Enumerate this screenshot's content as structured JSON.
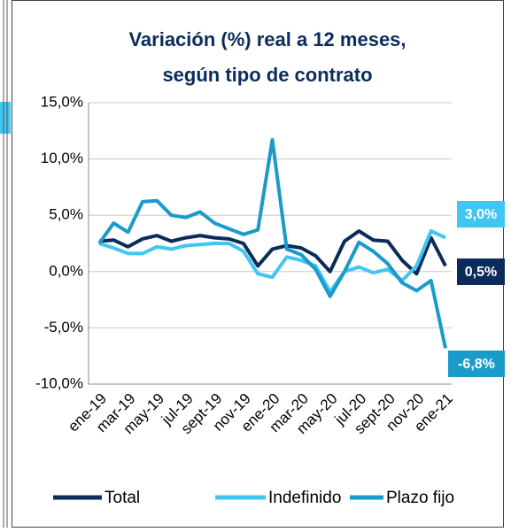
{
  "chart_data": {
    "type": "line",
    "title": [
      "Variación (%) real a 12 meses,",
      "según tipo de contrato"
    ],
    "categories": [
      "ene-19",
      null,
      "mar-19",
      null,
      "may-19",
      null,
      "jul-19",
      null,
      "sept-19",
      null,
      "nov-19",
      null,
      "ene-20",
      null,
      "mar-20",
      null,
      "may-20",
      null,
      "jul-20",
      null,
      "sept-20",
      null,
      "nov-20",
      null,
      "ene-21"
    ],
    "series": [
      {
        "name": "Total",
        "color": "#0b2c5a",
        "values": [
          2.7,
          2.8,
          2.2,
          2.9,
          3.2,
          2.7,
          3.0,
          3.2,
          3.0,
          2.9,
          2.5,
          0.5,
          2.0,
          2.3,
          2.1,
          1.4,
          0.0,
          2.7,
          3.6,
          2.8,
          2.7,
          1.0,
          -0.2,
          3.0,
          0.5
        ],
        "value_labels": [
          null,
          null,
          null,
          null,
          null,
          null,
          null,
          null,
          null,
          null,
          null,
          null,
          null,
          null,
          null,
          null,
          null,
          null,
          null,
          null,
          null,
          null,
          null,
          null,
          "0,5%"
        ]
      },
      {
        "name": "Indefinido",
        "color": "#41c6f2",
        "values": [
          2.5,
          2.1,
          1.6,
          1.6,
          2.2,
          2.0,
          2.3,
          2.4,
          2.5,
          2.5,
          1.8,
          -0.2,
          -0.5,
          1.3,
          1.0,
          0.5,
          -1.8,
          0.0,
          0.4,
          -0.1,
          0.2,
          -0.8,
          0.5,
          3.6,
          3.0
        ],
        "value_labels": [
          null,
          null,
          null,
          null,
          null,
          null,
          null,
          null,
          null,
          null,
          null,
          null,
          null,
          null,
          null,
          null,
          null,
          null,
          null,
          null,
          null,
          null,
          null,
          null,
          "3,0%"
        ]
      },
      {
        "name": "Plazo fijo",
        "color": "#1a9bc9",
        "values": [
          2.5,
          4.3,
          3.5,
          6.2,
          6.3,
          5.0,
          4.8,
          5.3,
          4.3,
          3.8,
          3.3,
          3.7,
          11.7,
          2.0,
          1.5,
          0.2,
          -2.2,
          0.0,
          2.6,
          1.8,
          0.7,
          -1.0,
          -1.7,
          -0.8,
          -6.8
        ],
        "value_labels": [
          null,
          null,
          null,
          null,
          null,
          null,
          null,
          null,
          null,
          null,
          null,
          null,
          null,
          null,
          null,
          null,
          null,
          null,
          null,
          null,
          null,
          null,
          null,
          null,
          "-6,8%"
        ]
      }
    ],
    "ylim": [
      -10,
      15
    ],
    "yticks": [
      {
        "value": -10,
        "label": "-10,0%"
      },
      {
        "value": -5,
        "label": "-5,0%"
      },
      {
        "value": 0,
        "label": "0,0%"
      },
      {
        "value": 5,
        "label": "5,0%"
      },
      {
        "value": 10,
        "label": "10,0%"
      },
      {
        "value": 15,
        "label": "15,0%"
      }
    ],
    "grid": true,
    "legend": "bottom"
  }
}
